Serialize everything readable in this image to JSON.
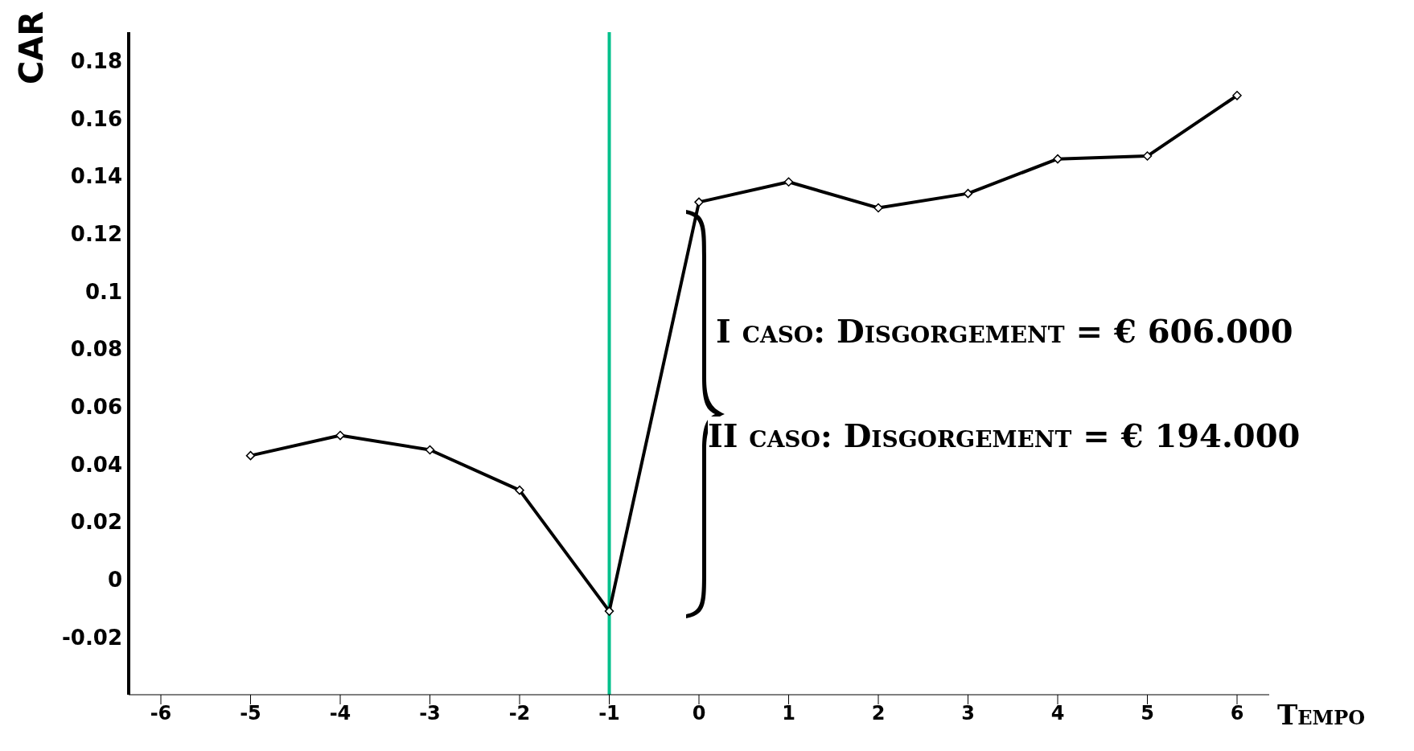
{
  "chart_data": {
    "type": "line",
    "xlabel": "Tempo",
    "ylabel": "CAR",
    "categories": [
      "-6",
      "-5",
      "-4",
      "-3",
      "-2",
      "-1",
      "0",
      "1",
      "2",
      "3",
      "4",
      "5",
      "6"
    ],
    "series": [
      {
        "color": "#000000",
        "values": [
          null,
          0.043,
          0.05,
          0.045,
          0.031,
          -0.011,
          0.131,
          0.138,
          0.129,
          0.134,
          0.146,
          0.147,
          0.168
        ]
      }
    ],
    "ylim": [
      -0.04,
      0.19
    ],
    "yticks": [
      -0.02,
      0,
      0.02,
      0.04,
      0.06,
      0.08,
      0.1,
      0.12,
      0.14,
      0.16,
      0.18
    ],
    "grid": false,
    "legend": false,
    "marker": "diamond",
    "line_style": "solid",
    "ref_lines": [
      {
        "axis": "x",
        "value": "-1",
        "color": "#00c08b"
      }
    ],
    "annotations": [
      "I caso: Disgorgement = € 606.000",
      "II caso: Disgorgement = € 194.000"
    ]
  }
}
